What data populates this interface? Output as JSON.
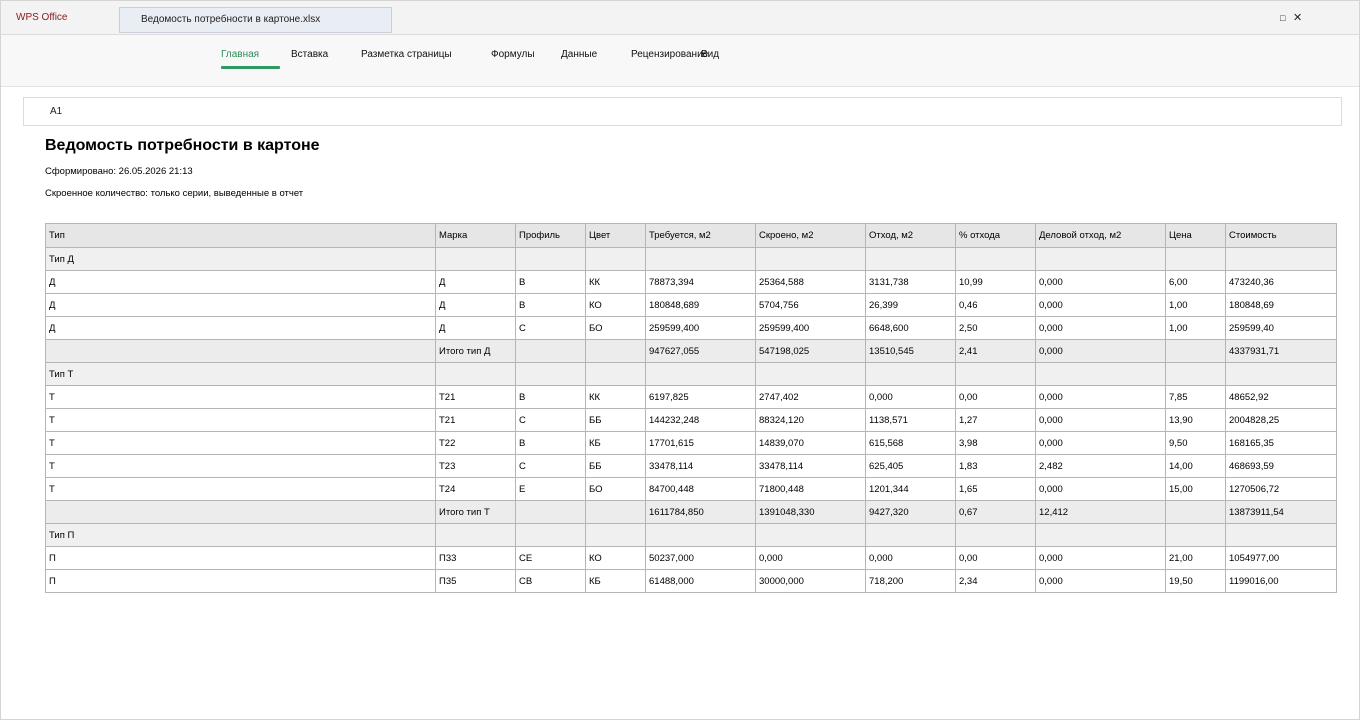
{
  "app": {
    "name": "WPS Office",
    "document_tab": "Ведомость потребности в картоне.xlsx",
    "max_icon": "□",
    "close_icon": "✕"
  },
  "menu": [
    {
      "label": "Главная",
      "active": true
    },
    {
      "label": "Вставка",
      "active": false
    },
    {
      "label": "Разметка страницы",
      "active": false
    },
    {
      "label": "Формулы",
      "active": false
    },
    {
      "label": "Данные",
      "active": false
    },
    {
      "label": "Рецензирование",
      "active": false
    },
    {
      "label": "Вид",
      "active": false
    }
  ],
  "accent_color": "#2e9a5f",
  "cell_ref": "A1",
  "report": {
    "title": "Ведомость потребности в картоне",
    "generated": "Сформировано: 26.05.2026 21:13",
    "note": "Скроенное количество: только серии, выведенные в отчет"
  },
  "table": {
    "headers": [
      "Тип",
      "Марка",
      "Профиль",
      "Цвет",
      "Требуется, м2",
      "Скроено, м2",
      "Отход, м2",
      "% отхода",
      "Деловой отход, м2",
      "Цена",
      "Стоимость"
    ],
    "rows": [
      {
        "kind": "group",
        "cells": [
          "Тип Д",
          "",
          "",
          "",
          "",
          "",
          "",
          "",
          "",
          "",
          ""
        ]
      },
      {
        "kind": "data",
        "cells": [
          "Д",
          "Д",
          "В",
          "КК",
          "78873,394",
          "25364,588",
          "3131,738",
          "10,99",
          "0,000",
          "6,00",
          "473240,36"
        ]
      },
      {
        "kind": "data",
        "cells": [
          "Д",
          "Д",
          "В",
          "КО",
          "180848,689",
          "5704,756",
          "26,399",
          "0,46",
          "0,000",
          "1,00",
          "180848,69"
        ]
      },
      {
        "kind": "data",
        "cells": [
          "Д",
          "Д",
          "С",
          "БО",
          "259599,400",
          "259599,400",
          "6648,600",
          "2,50",
          "0,000",
          "1,00",
          "259599,40"
        ]
      },
      {
        "kind": "subtotal",
        "cells": [
          "",
          "Итого тип Д",
          "",
          "",
          "947627,055",
          "547198,025",
          "13510,545",
          "2,41",
          "0,000",
          "",
          "4337931,71"
        ]
      },
      {
        "kind": "group",
        "cells": [
          "Тип Т",
          "",
          "",
          "",
          "",
          "",
          "",
          "",
          "",
          "",
          ""
        ]
      },
      {
        "kind": "data",
        "cells": [
          "Т",
          "Т21",
          "В",
          "КК",
          "6197,825",
          "2747,402",
          "0,000",
          "0,00",
          "0,000",
          "7,85",
          "48652,92"
        ]
      },
      {
        "kind": "data",
        "cells": [
          "Т",
          "Т21",
          "С",
          "ББ",
          "144232,248",
          "88324,120",
          "1138,571",
          "1,27",
          "0,000",
          "13,90",
          "2004828,25"
        ]
      },
      {
        "kind": "data",
        "cells": [
          "Т",
          "Т22",
          "В",
          "КБ",
          "17701,615",
          "14839,070",
          "615,568",
          "3,98",
          "0,000",
          "9,50",
          "168165,35"
        ]
      },
      {
        "kind": "data",
        "cells": [
          "Т",
          "Т23",
          "С",
          "ББ",
          "33478,114",
          "33478,114",
          "625,405",
          "1,83",
          "2,482",
          "14,00",
          "468693,59"
        ]
      },
      {
        "kind": "data",
        "cells": [
          "Т",
          "Т24",
          "Е",
          "БО",
          "84700,448",
          "71800,448",
          "1201,344",
          "1,65",
          "0,000",
          "15,00",
          "1270506,72"
        ]
      },
      {
        "kind": "subtotal",
        "cells": [
          "",
          "Итого тип Т",
          "",
          "",
          "1611784,850",
          "1391048,330",
          "9427,320",
          "0,67",
          "12,412",
          "",
          "13873911,54"
        ]
      },
      {
        "kind": "group",
        "cells": [
          "Тип П",
          "",
          "",
          "",
          "",
          "",
          "",
          "",
          "",
          "",
          ""
        ]
      },
      {
        "kind": "data",
        "cells": [
          "П",
          "П33",
          "СЕ",
          "КО",
          "50237,000",
          "0,000",
          "0,000",
          "0,00",
          "0,000",
          "21,00",
          "1054977,00"
        ]
      },
      {
        "kind": "data",
        "cells": [
          "П",
          "П35",
          "СВ",
          "КБ",
          "61488,000",
          "30000,000",
          "718,200",
          "2,34",
          "0,000",
          "19,50",
          "1199016,00"
        ]
      }
    ]
  }
}
